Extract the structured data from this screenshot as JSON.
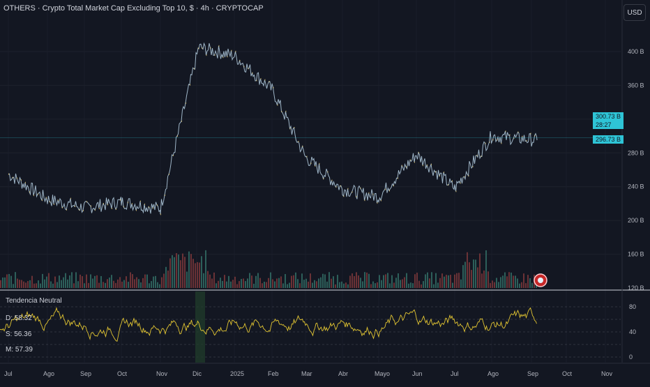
{
  "header": {
    "title": "OTHERS · Crypto Total Market Cap Excluding Top 10, $ · 4h · CRYPTOCAP",
    "currency_button": "USD"
  },
  "price_axis": {
    "labels": [
      "400 B",
      "360 B",
      "280 B",
      "240 B",
      "200 B",
      "160 B",
      "120 B"
    ],
    "current_price": "300.73 B",
    "countdown": "28:27",
    "second_price": "296.73 B"
  },
  "time_axis": {
    "labels": [
      "Jul",
      "Ago",
      "Sep",
      "Oct",
      "Nov",
      "Dic",
      "2025",
      "Feb",
      "Mar",
      "Abr",
      "Mayo",
      "Jun",
      "Jul",
      "Ago",
      "Sep",
      "Oct",
      "Nov"
    ]
  },
  "indicator": {
    "title": "Tendencia Neutral",
    "d_label": "D:",
    "d_value": "58.32",
    "s_label": "S:",
    "s_value": "56.36",
    "m_label": "M:",
    "m_value": "57.39",
    "axis_labels": [
      "80",
      "40",
      "0"
    ]
  },
  "colors": {
    "background": "#131722",
    "price_line": "#9fb6c8",
    "candle_highlight": "#e7c76a",
    "volume_up": "#2d5f5a",
    "volume_down": "#6b3236",
    "oscillator": "#e2c532",
    "accent": "#2ec4d6"
  },
  "chart_data": {
    "type": "line",
    "title": "OTHERS · Crypto Total Market Cap Excluding Top 10, $ · 4h · CRYPTOCAP",
    "x": [
      "Jul",
      "Ago",
      "Sep",
      "Oct",
      "Nov",
      "Dic",
      "2025",
      "Feb",
      "Mar",
      "Abr",
      "Mayo",
      "Jun",
      "Jul",
      "Ago",
      "Sep"
    ],
    "series": [
      {
        "values": [
          255,
          225,
          215,
          222,
          214,
          405,
          395,
          355,
          275,
          237,
          228,
          278,
          238,
          300,
          295
        ]
      }
    ],
    "ylim": [
      110,
      430
    ]
  }
}
